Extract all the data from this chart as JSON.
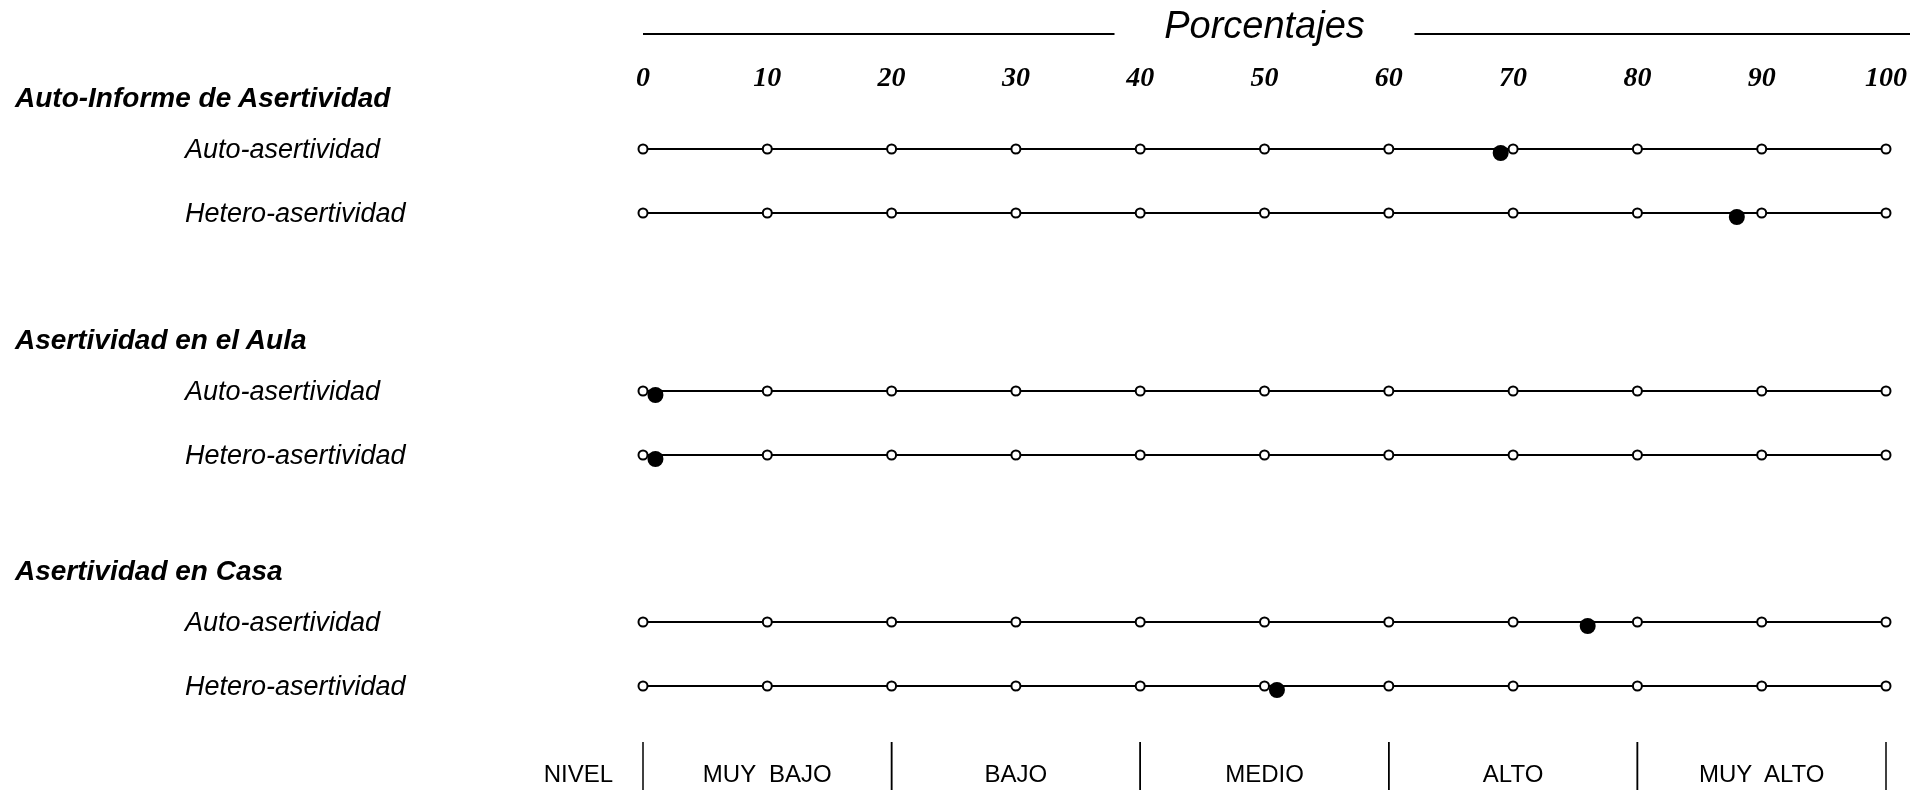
{
  "chart_data": [
    {
      "type": "scatter",
      "orientation": "horizontal",
      "title": "Auto-Informe de Asertividad",
      "xlabel": "Porcentajes",
      "categories": [
        "Auto-asertividad",
        "Hetero-asertividad"
      ],
      "xlim": [
        0,
        100
      ],
      "xticks": [
        0,
        10,
        20,
        30,
        40,
        50,
        60,
        70,
        80,
        90,
        100
      ],
      "marker": "circle",
      "series": [
        {
          "color": "#000000",
          "values": [
            69,
            88
          ]
        }
      ]
    },
    {
      "type": "scatter",
      "orientation": "horizontal",
      "title": "Asertividad en el Aula",
      "categories": [
        "Auto-asertividad",
        "Hetero-asertividad"
      ],
      "xlim": [
        0,
        100
      ],
      "xticks": [
        0,
        10,
        20,
        30,
        40,
        50,
        60,
        70,
        80,
        90,
        100
      ],
      "marker": "circle",
      "tick_labels": "y",
      "series": [
        {
          "color": "#000000",
          "values": [
            1,
            1
          ]
        }
      ]
    },
    {
      "type": "scatter",
      "orientation": "horizontal",
      "title": "Asertividad en Casa",
      "categories": [
        "Auto-asertividad",
        "Hetero-asertividad"
      ],
      "xlim": [
        0,
        100
      ],
      "xticks": [
        0,
        10,
        20,
        30,
        40,
        50,
        60,
        70,
        80,
        90,
        100
      ],
      "marker": "circle",
      "tick_labels": "y",
      "series": [
        {
          "color": "#000000",
          "values": [
            76,
            51
          ]
        }
      ],
      "annotations": [
        "NIVEL",
        "MUY  BAJO",
        "BAJO",
        "MEDIO",
        "ALTO",
        "MUY  ALTO"
      ]
    }
  ]
}
